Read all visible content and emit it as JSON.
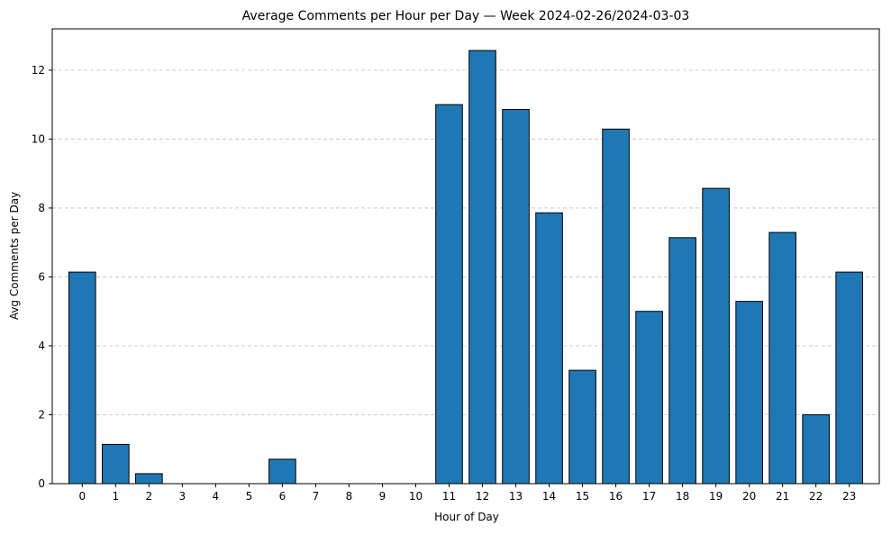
{
  "chart_data": {
    "type": "bar",
    "title": "Average Comments per Hour per Day — Week 2024-02-26/2024-03-03",
    "xlabel": "Hour of Day",
    "ylabel": "Avg Comments per Day",
    "categories": [
      "0",
      "1",
      "2",
      "3",
      "4",
      "5",
      "6",
      "7",
      "8",
      "9",
      "10",
      "11",
      "12",
      "13",
      "14",
      "15",
      "16",
      "17",
      "18",
      "19",
      "20",
      "21",
      "22",
      "23"
    ],
    "values": [
      6.14,
      1.14,
      0.29,
      0,
      0,
      0,
      0.71,
      0,
      0,
      0,
      0,
      11.0,
      12.57,
      10.86,
      7.86,
      3.29,
      10.29,
      5.0,
      7.14,
      8.57,
      5.29,
      7.29,
      2.0,
      6.14
    ],
    "ylim": [
      0,
      13.2
    ],
    "yticks": [
      0,
      2,
      4,
      6,
      8,
      10,
      12
    ],
    "grid": "y-dashed",
    "bar_color": "#1f77b4",
    "edge_color": "#000000",
    "grid_color": "#c0c0c0"
  }
}
